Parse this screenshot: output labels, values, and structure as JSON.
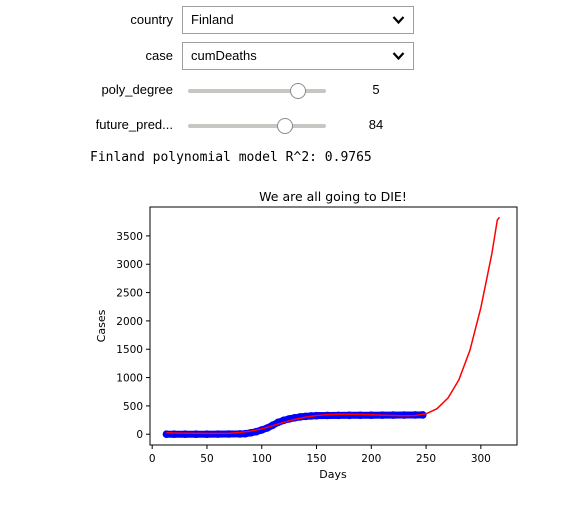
{
  "controls": {
    "country": {
      "label": "country",
      "value": "Finland"
    },
    "case": {
      "label": "case",
      "value": "cumDeaths"
    },
    "poly_degree": {
      "label": "poly_degree",
      "value": "5",
      "fraction": 0.8
    },
    "future_pred": {
      "label": "future_pred...",
      "value": "84",
      "fraction": 0.7
    }
  },
  "model_text": "Finland polynomial model R^2: 0.9765",
  "chart_data": {
    "type": "line",
    "title": "We are all going to DIE!",
    "xlabel": "Days",
    "ylabel": "Cases",
    "xlim": [
      -2,
      333
    ],
    "ylim": [
      -190,
      4010
    ],
    "xticks": [
      0,
      50,
      100,
      150,
      200,
      250,
      300
    ],
    "yticks": [
      0,
      500,
      1000,
      1500,
      2000,
      2500,
      3000,
      3500
    ],
    "grid": false,
    "series": [
      {
        "kind": "scatter",
        "color": "#0000ff",
        "points": [
          [
            13,
            0
          ],
          [
            20,
            0
          ],
          [
            30,
            0
          ],
          [
            40,
            0
          ],
          [
            50,
            0
          ],
          [
            60,
            2
          ],
          [
            70,
            4
          ],
          [
            80,
            6
          ],
          [
            85,
            10
          ],
          [
            90,
            25
          ],
          [
            95,
            45
          ],
          [
            100,
            75
          ],
          [
            105,
            110
          ],
          [
            110,
            160
          ],
          [
            115,
            210
          ],
          [
            120,
            245
          ],
          [
            125,
            270
          ],
          [
            130,
            290
          ],
          [
            135,
            305
          ],
          [
            140,
            315
          ],
          [
            145,
            322
          ],
          [
            150,
            328
          ],
          [
            160,
            331
          ],
          [
            170,
            333
          ],
          [
            180,
            334
          ],
          [
            190,
            335
          ],
          [
            200,
            336
          ],
          [
            210,
            337
          ],
          [
            220,
            338
          ],
          [
            230,
            339
          ],
          [
            240,
            340
          ],
          [
            247,
            341
          ]
        ]
      },
      {
        "kind": "line",
        "color": "#ff0000",
        "points": [
          [
            13,
            25
          ],
          [
            25,
            20
          ],
          [
            40,
            18
          ],
          [
            55,
            15
          ],
          [
            70,
            18
          ],
          [
            80,
            30
          ],
          [
            90,
            55
          ],
          [
            100,
            95
          ],
          [
            110,
            150
          ],
          [
            120,
            210
          ],
          [
            130,
            262
          ],
          [
            140,
            303
          ],
          [
            150,
            330
          ],
          [
            160,
            347
          ],
          [
            170,
            353
          ],
          [
            180,
            353
          ],
          [
            190,
            350
          ],
          [
            200,
            344
          ],
          [
            210,
            337
          ],
          [
            220,
            330
          ],
          [
            230,
            325
          ],
          [
            240,
            330
          ],
          [
            250,
            360
          ],
          [
            260,
            450
          ],
          [
            270,
            640
          ],
          [
            280,
            960
          ],
          [
            290,
            1480
          ],
          [
            300,
            2230
          ],
          [
            310,
            3180
          ],
          [
            315,
            3780
          ],
          [
            317,
            3830
          ]
        ]
      }
    ]
  }
}
